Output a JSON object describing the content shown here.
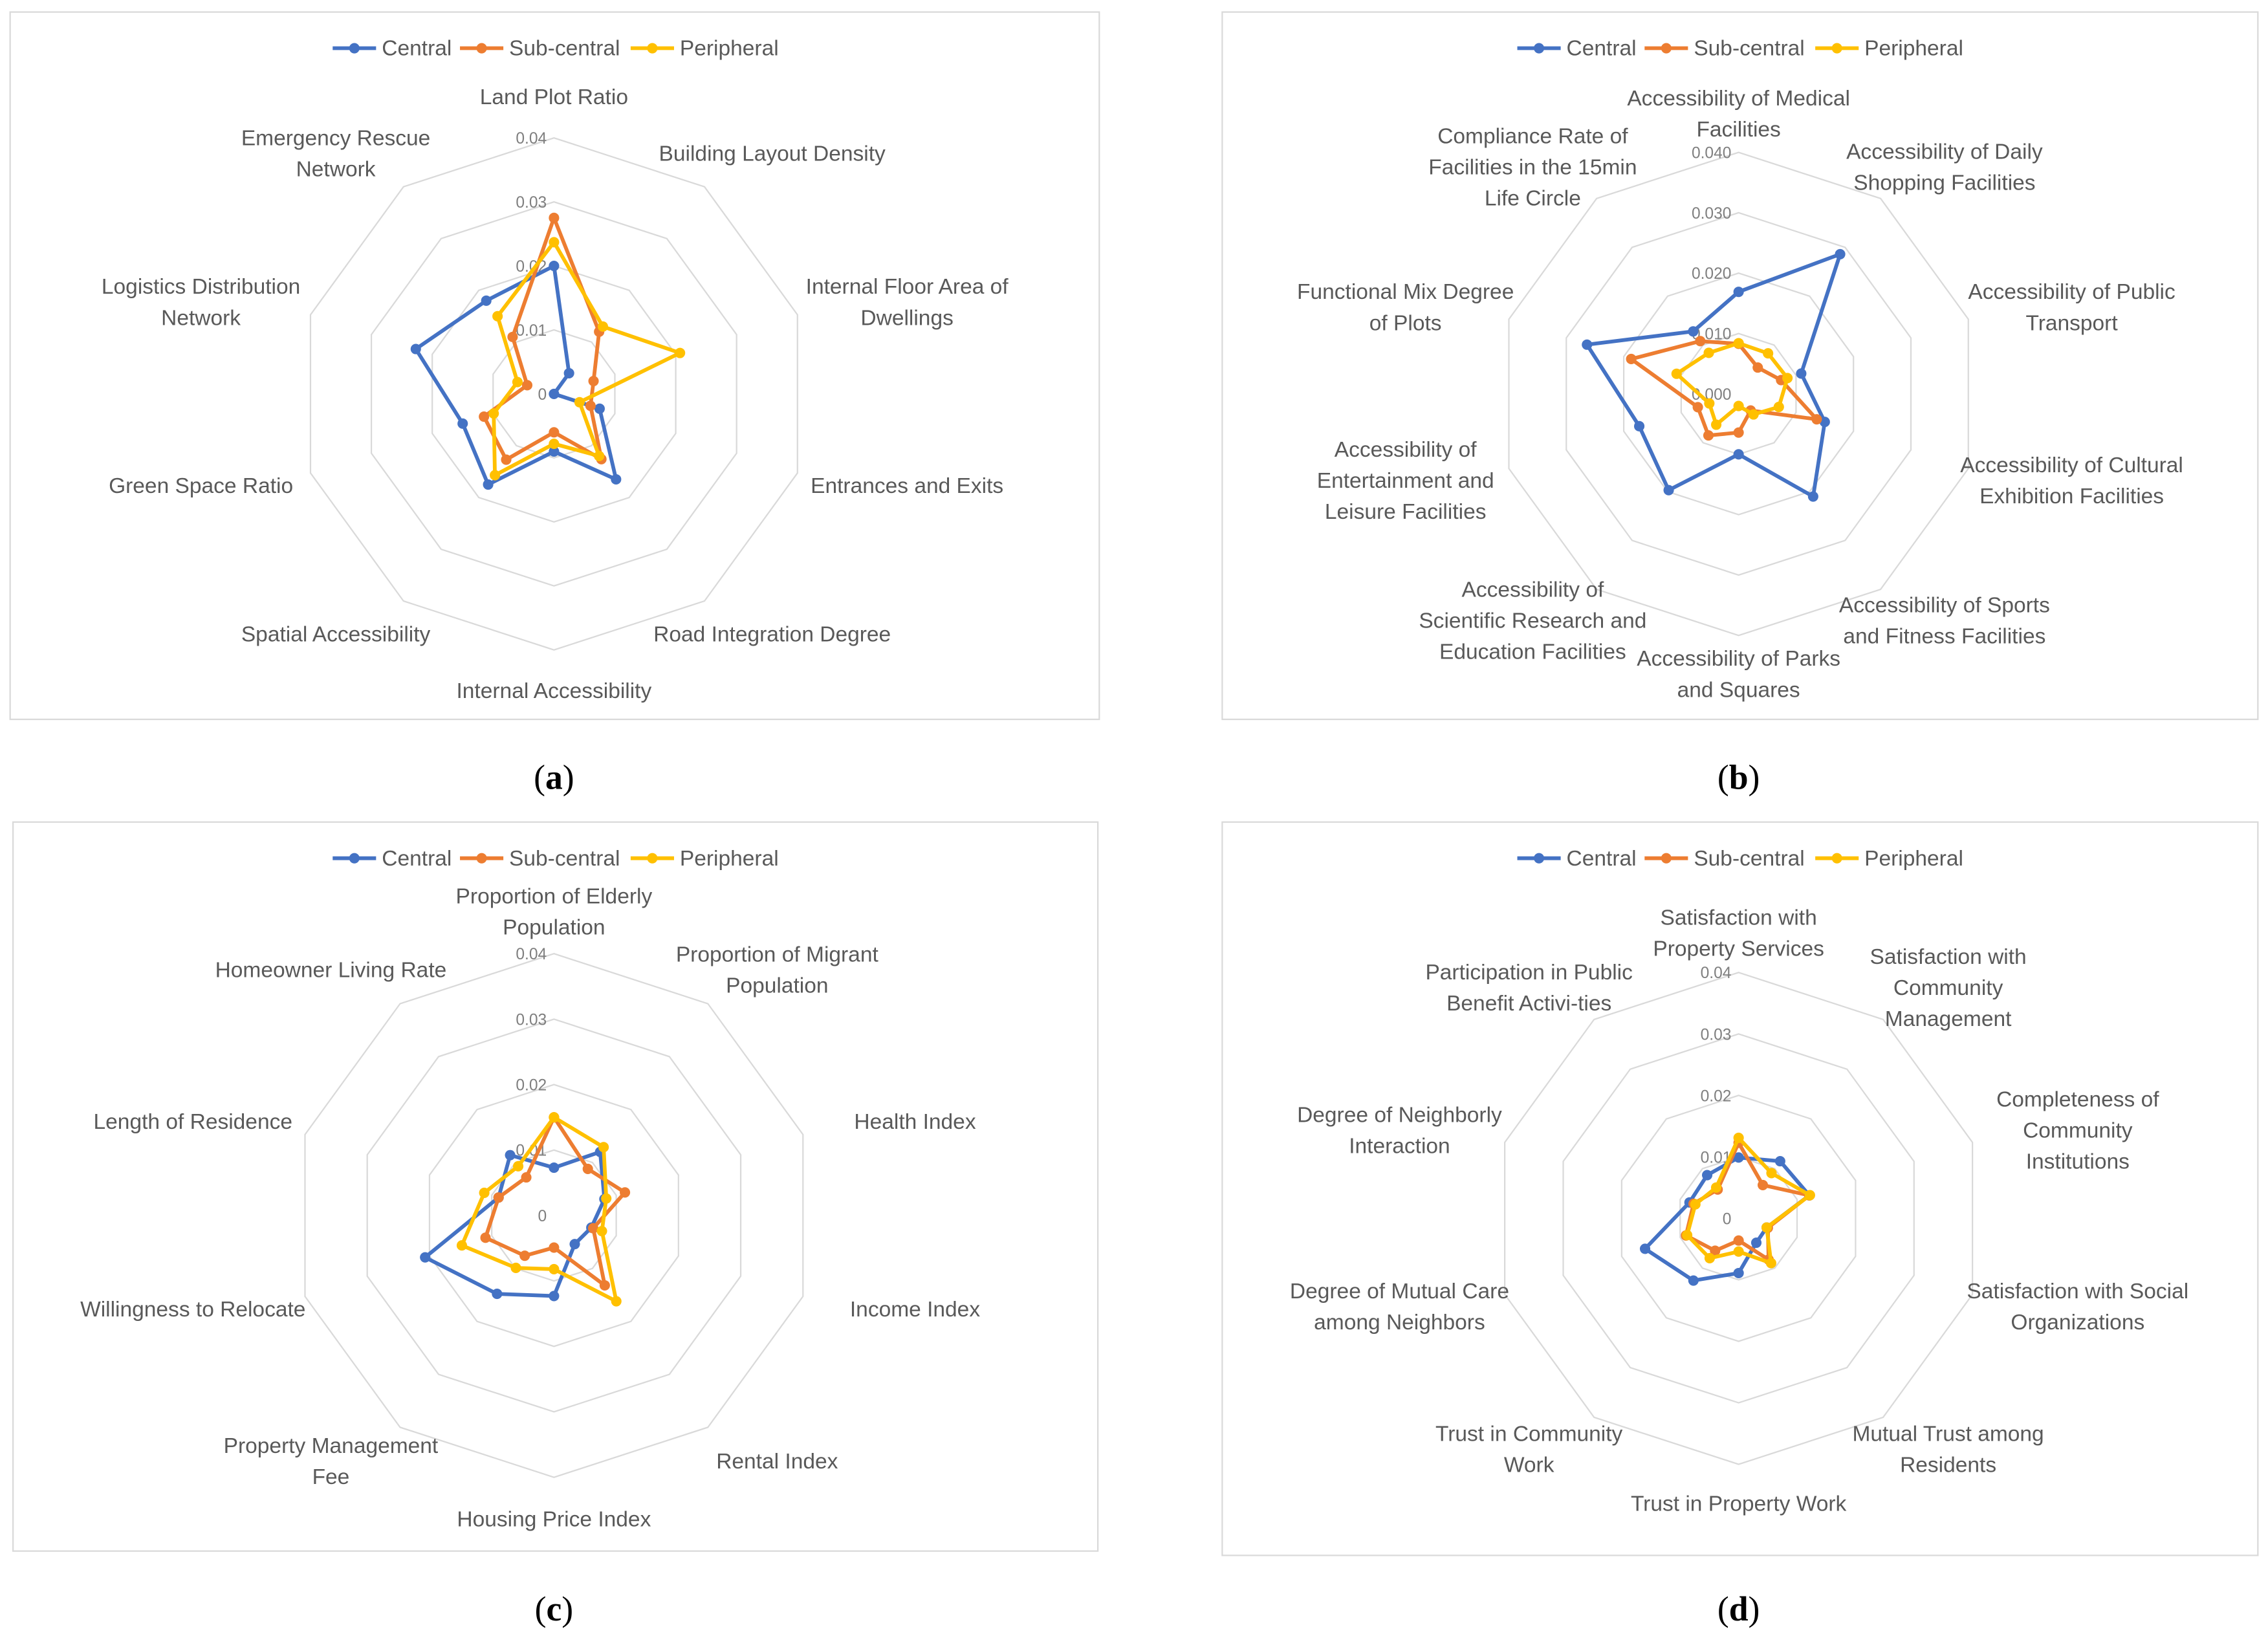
{
  "colors": {
    "Central": "#4472C4",
    "Sub-central": "#ED7D31",
    "Peripheral": "#FFC000",
    "grid": "#D9D9D9",
    "frame": "#D9D9D9"
  },
  "chart_data": [
    {
      "type": "radar",
      "caption": "a",
      "legend": [
        "Central",
        "Sub-central",
        "Peripheral"
      ],
      "legend_position": "top",
      "rmax": 0.04,
      "ticks": [
        "0",
        "0.01",
        "0.02",
        "0.03",
        "0.04"
      ],
      "categories": [
        [
          "Land Plot Ratio"
        ],
        [
          "Building Layout Density"
        ],
        [
          "Internal Floor Area of",
          "Dwellings"
        ],
        [
          "Entrances and Exits"
        ],
        [
          "Road Integration Degree"
        ],
        [
          "Internal Accessibility"
        ],
        [
          "Spatial Accessibility"
        ],
        [
          "Green Space Ratio"
        ],
        [
          "Logistics Distribution",
          "Network"
        ],
        [
          "Emergency Rescue",
          "Network"
        ]
      ],
      "series": [
        {
          "name": "Central",
          "values": [
            0.02,
            0.004,
            0.0,
            0.0075,
            0.0165,
            0.009,
            0.0175,
            0.015,
            0.0227,
            0.018
          ]
        },
        {
          "name": "Sub-central",
          "values": [
            0.0275,
            0.012,
            0.0065,
            0.006,
            0.0126,
            0.006,
            0.0127,
            0.0115,
            0.0044,
            0.011
          ]
        },
        {
          "name": "Peripheral",
          "values": [
            0.0237,
            0.013,
            0.0207,
            0.0042,
            0.012,
            0.0078,
            0.0157,
            0.0099,
            0.006,
            0.015
          ]
        }
      ]
    },
    {
      "type": "radar",
      "caption": "b",
      "legend": [
        "Central",
        "Sub-central",
        "Peripheral"
      ],
      "legend_position": "top",
      "rmax": 0.04,
      "ticks": [
        "0.000",
        "0.010",
        "0.020",
        "0.030",
        "0.040"
      ],
      "categories": [
        [
          "Accessibility of Medical",
          "Facilities"
        ],
        [
          "Accessibility of Daily",
          "Shopping Facilities"
        ],
        [
          "Accessibility of Public",
          "Transport"
        ],
        [
          "Accessibility of Cultural",
          "Exhibition Facilities"
        ],
        [
          "Accessibility of Sports",
          "and Fitness Facilities"
        ],
        [
          "Accessibility of Parks",
          "and Squares"
        ],
        [
          "Accessibility of",
          "Scientific Research and",
          "Education Facilities"
        ],
        [
          "Accessibility of",
          "Entertainment and",
          "Leisure Facilities"
        ],
        [
          "Functional Mix Degree",
          "of Plots"
        ],
        [
          "Compliance Rate of",
          "Facilities in the 15min",
          "Life Circle"
        ]
      ],
      "series": [
        {
          "name": "Central",
          "values": [
            0.0169,
            0.0286,
            0.0109,
            0.015,
            0.021,
            0.01,
            0.0197,
            0.0173,
            0.0264,
            0.0128
          ]
        },
        {
          "name": "Sub-central",
          "values": [
            0.0083,
            0.0054,
            0.0074,
            0.0136,
            0.0034,
            0.0064,
            0.0085,
            0.0071,
            0.0187,
            0.0108
          ]
        },
        {
          "name": "Peripheral",
          "values": [
            0.0084,
            0.0083,
            0.0085,
            0.007,
            0.0042,
            0.002,
            0.0063,
            0.0051,
            0.0108,
            0.0084
          ]
        }
      ]
    },
    {
      "type": "radar",
      "caption": "c",
      "legend": [
        "Central",
        "Sub-central",
        "Peripheral"
      ],
      "legend_position": "top",
      "rmax": 0.04,
      "ticks": [
        "0",
        "0.01",
        "0.02",
        "0.03",
        "0.04"
      ],
      "categories": [
        [
          "Proportion of Elderly",
          "Population"
        ],
        [
          "Proportion of Migrant",
          "Population"
        ],
        [
          "Health Index"
        ],
        [
          "Income Index"
        ],
        [
          "Rental Index"
        ],
        [
          "Housing Price Index"
        ],
        [
          "Property Management",
          "Fee"
        ],
        [
          "Willingness to Relocate"
        ],
        [
          "Length of Residence"
        ],
        [
          "Homeowner Living Rate"
        ]
      ],
      "series": [
        {
          "name": "Central",
          "values": [
            0.0073,
            0.012,
            0.0081,
            0.006,
            0.0054,
            0.0123,
            0.0148,
            0.0207,
            0.0089,
            0.0114
          ]
        },
        {
          "name": "Sub-central",
          "values": [
            0.015,
            0.0088,
            0.0114,
            0.0063,
            0.0132,
            0.0049,
            0.0076,
            0.011,
            0.0089,
            0.0072
          ]
        },
        {
          "name": "Peripheral",
          "values": [
            0.015,
            0.0129,
            0.0084,
            0.0077,
            0.0162,
            0.0082,
            0.0099,
            0.0148,
            0.0112,
            0.0093
          ]
        }
      ]
    },
    {
      "type": "radar",
      "caption": "d",
      "legend": [
        "Central",
        "Sub-central",
        "Peripheral"
      ],
      "legend_position": "top",
      "rmax": 0.04,
      "ticks": [
        "0",
        "0.01",
        "0.02",
        "0.03",
        "0.04"
      ],
      "categories": [
        [
          "Satisfaction with",
          "Property Services"
        ],
        [
          "Satisfaction with",
          "Community",
          "Management"
        ],
        [
          "Completeness of",
          "Community",
          "Institutions"
        ],
        [
          "Satisfaction with Social",
          "Organizations"
        ],
        [
          "Mutual Trust among",
          "Residents"
        ],
        [
          "Trust in Property Work"
        ],
        [
          "Trust in Community",
          "Work"
        ],
        [
          "Degree of Mutual Care",
          "among Neighbors"
        ],
        [
          "Degree of Neighborly",
          "Interaction"
        ],
        [
          "Participation in Public",
          "Benefit Activi-ties"
        ]
      ],
      "series": [
        {
          "name": "Central",
          "values": [
            0.0099,
            0.0115,
            0.0121,
            0.0048,
            0.0049,
            0.0089,
            0.0125,
            0.016,
            0.0084,
            0.0087
          ]
        },
        {
          "name": "Sub-central",
          "values": [
            0.0123,
            0.0067,
            0.0121,
            0.005,
            0.0083,
            0.0036,
            0.0065,
            0.009,
            0.0077,
            0.0058
          ]
        },
        {
          "name": "Peripheral",
          "values": [
            0.0131,
            0.0091,
            0.0122,
            0.0048,
            0.009,
            0.0054,
            0.008,
            0.0088,
            0.0074,
            0.0062
          ]
        }
      ]
    }
  ]
}
